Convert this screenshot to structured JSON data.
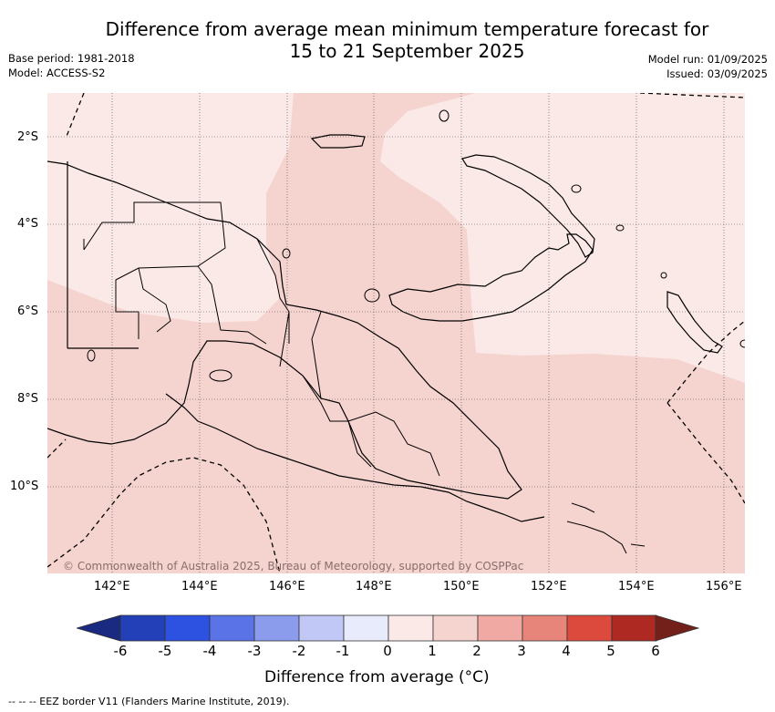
{
  "title_line1": "Difference from average mean minimum temperature forecast for",
  "title_line2": "15 to 21 September 2025",
  "meta": {
    "base_period": "Base period: 1981-2018",
    "model": "Model: ACCESS-S2",
    "model_run": "Model run: 01/09/2025",
    "issued": "Issued: 03/09/2025"
  },
  "map": {
    "lon_ticks": [
      "142°E",
      "144°E",
      "146°E",
      "148°E",
      "150°E",
      "152°E",
      "154°E",
      "156°E"
    ],
    "lat_ticks": [
      "2°S",
      "4°S",
      "6°S",
      "8°S",
      "10°S"
    ],
    "copyright": "© Commonwealth of Australia 2025, Bureau of Meteorology, supported by COSPPac",
    "colors": {
      "land_line": "#000000",
      "anomaly_0_1": "#fbe9e7",
      "anomaly_1_2": "#f5d3cf",
      "ocean_boundary": "#ffffff"
    }
  },
  "colorbar": {
    "title": "Difference from average (°C)",
    "labels": [
      "-6",
      "-5",
      "-4",
      "-3",
      "-2",
      "-1",
      "0",
      "1",
      "2",
      "3",
      "4",
      "5",
      "6"
    ],
    "colors": [
      "#1a2a80",
      "#2340b8",
      "#2d51e0",
      "#5a73e6",
      "#8b9ced",
      "#c2c8f5",
      "#e8ebfb",
      "#fbe9e7",
      "#f5d3cf",
      "#f0aaa3",
      "#e7857a",
      "#dc4a3e",
      "#ad2922",
      "#74201a"
    ]
  },
  "footnote": "--  --  -- EEZ border V11 (Flanders Marine Institute, 2019)."
}
